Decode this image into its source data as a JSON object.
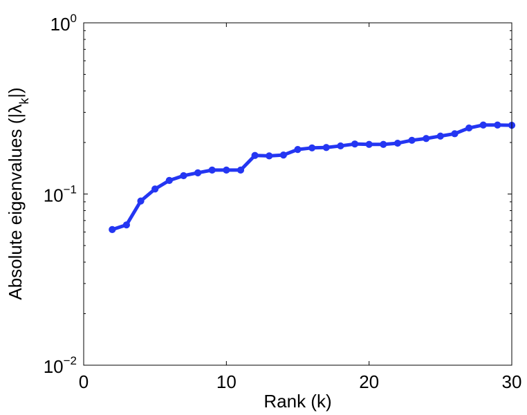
{
  "chart_data": {
    "type": "line",
    "title": "",
    "xlabel": "Rank (k)",
    "ylabel": {
      "prefix": "Absolute eigenvalues (|",
      "lambda": "λ",
      "subscript": "k",
      "suffix": "|)"
    },
    "x_scale": "linear",
    "y_scale": "log",
    "xlim": [
      0,
      30
    ],
    "ylim": [
      0.01,
      1
    ],
    "x_ticks": [
      {
        "value": 0,
        "label": "0"
      },
      {
        "value": 10,
        "label": "10"
      },
      {
        "value": 20,
        "label": "20"
      },
      {
        "value": 30,
        "label": "30"
      }
    ],
    "y_ticks": [
      {
        "value": 0.01,
        "base": "10",
        "exponent": "−2"
      },
      {
        "value": 0.1,
        "base": "10",
        "exponent": "−1"
      },
      {
        "value": 1,
        "base": "10",
        "exponent": "0"
      }
    ],
    "grid": false,
    "series": [
      {
        "color": "#2436f2",
        "x": [
          2,
          3,
          4,
          5,
          6,
          7,
          8,
          9,
          10,
          11,
          12,
          13,
          14,
          15,
          16,
          17,
          18,
          19,
          20,
          21,
          22,
          23,
          24,
          25,
          26,
          27,
          28,
          29,
          30
        ],
        "y": [
          0.062,
          0.066,
          0.091,
          0.107,
          0.12,
          0.128,
          0.133,
          0.138,
          0.138,
          0.138,
          0.168,
          0.167,
          0.169,
          0.182,
          0.186,
          0.187,
          0.191,
          0.196,
          0.195,
          0.195,
          0.198,
          0.206,
          0.211,
          0.218,
          0.225,
          0.243,
          0.253,
          0.253,
          0.252
        ]
      }
    ]
  }
}
